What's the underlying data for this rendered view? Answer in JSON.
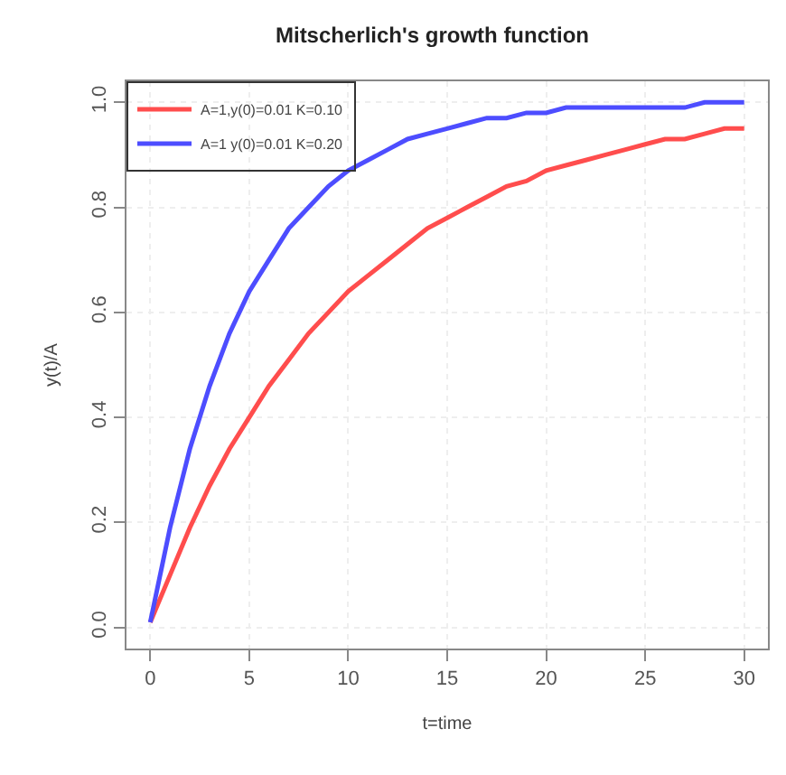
{
  "chart_data": {
    "type": "line",
    "title": "Mitscherlich's growth function",
    "xlabel": "t=time",
    "ylabel": "y(t)/A",
    "x": [
      0,
      1,
      2,
      3,
      4,
      5,
      6,
      7,
      8,
      9,
      10,
      11,
      12,
      13,
      14,
      15,
      16,
      17,
      18,
      19,
      20,
      21,
      22,
      23,
      24,
      25,
      26,
      27,
      28,
      29,
      30
    ],
    "series": [
      {
        "name": "A=1,y(0)=0.01 K=0.10",
        "color": "#ff4d4d",
        "values": [
          0.01,
          0.1,
          0.19,
          0.27,
          0.34,
          0.4,
          0.46,
          0.51,
          0.56,
          0.6,
          0.64,
          0.67,
          0.7,
          0.73,
          0.76,
          0.78,
          0.8,
          0.82,
          0.84,
          0.85,
          0.87,
          0.88,
          0.89,
          0.9,
          0.91,
          0.92,
          0.93,
          0.93,
          0.94,
          0.95,
          0.95
        ]
      },
      {
        "name": "A=1 y(0)=0.01 K=0.20",
        "color": "#4d4dff",
        "values": [
          0.01,
          0.19,
          0.34,
          0.46,
          0.56,
          0.64,
          0.7,
          0.76,
          0.8,
          0.84,
          0.87,
          0.89,
          0.91,
          0.93,
          0.94,
          0.95,
          0.96,
          0.97,
          0.97,
          0.98,
          0.98,
          0.99,
          0.99,
          0.99,
          0.99,
          0.99,
          0.99,
          0.99,
          1.0,
          1.0,
          1.0
        ]
      }
    ],
    "xlim": [
      -1.2,
      31.2
    ],
    "ylim": [
      -0.04,
      1.04
    ],
    "xticks": [
      0,
      5,
      10,
      15,
      20,
      25,
      30
    ],
    "yticks": [
      {
        "value": 0,
        "label": "0.0"
      },
      0.2,
      0.4,
      0.6,
      0.8,
      {
        "value": 1,
        "label": "1.0"
      }
    ],
    "grid": true,
    "legend": "top left",
    "marker": "none",
    "line_style": "solid"
  }
}
